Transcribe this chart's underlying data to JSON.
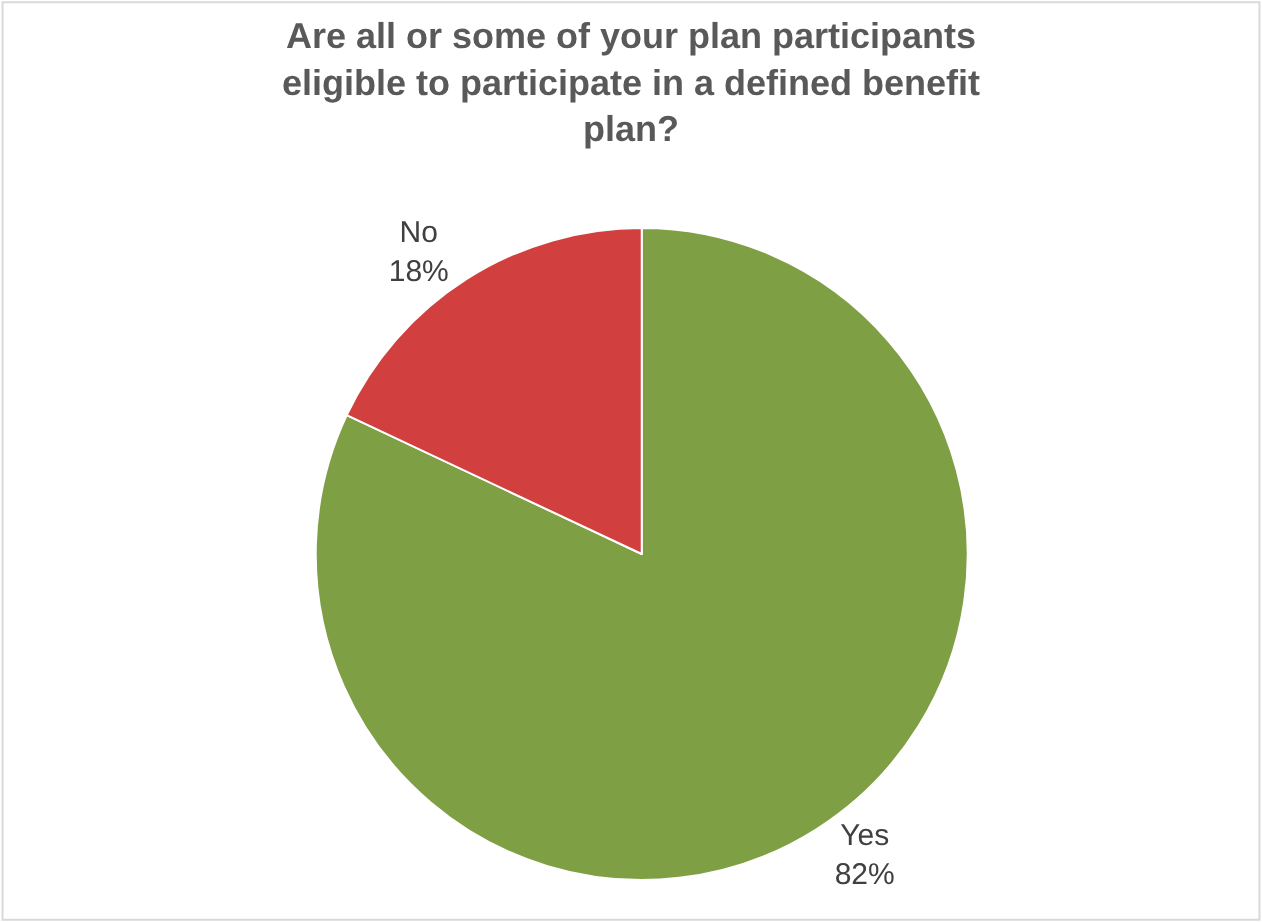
{
  "chart_data": {
    "type": "pie",
    "title": "Are all or some of your plan participants\neligible to participate in a defined benefit\nplan?",
    "categories": [
      "Yes",
      "No"
    ],
    "values": [
      82,
      18
    ],
    "value_labels": [
      "82%",
      "18%"
    ],
    "colors": [
      "#7f9f45",
      "#d23f3f"
    ],
    "legend": false
  }
}
